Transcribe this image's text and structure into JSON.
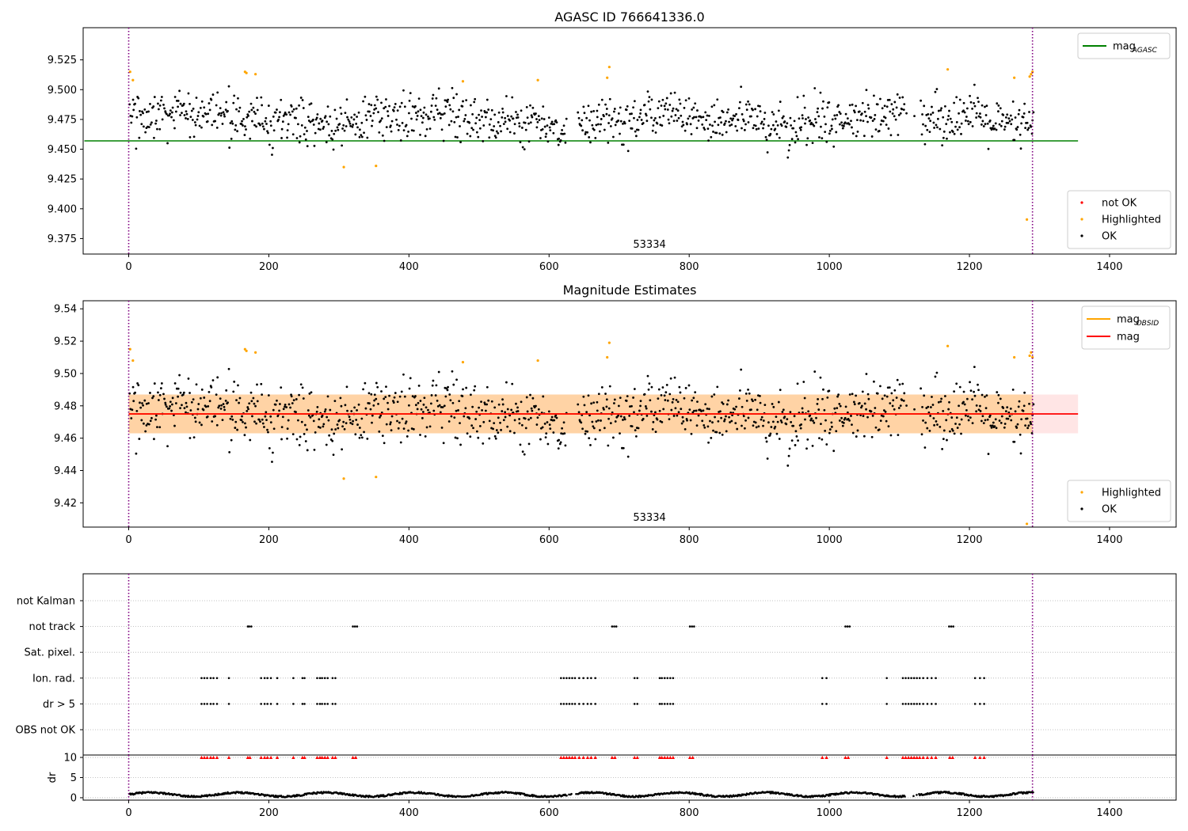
{
  "figure": {
    "title_top": "AGASC ID 766641336.0",
    "title_middle": "Magnitude Estimates"
  },
  "chart_data": [
    {
      "type": "scatter",
      "id": "agasc",
      "title": "AGASC ID 766641336.0",
      "xlim": [
        -65,
        1495
      ],
      "ylim": [
        9.362,
        9.552
      ],
      "xticks": [
        "0",
        "200",
        "400",
        "600",
        "800",
        "1000",
        "1200",
        "1400"
      ],
      "yticks": [
        "9.375",
        "9.400",
        "9.425",
        "9.450",
        "9.475",
        "9.500",
        "9.525"
      ],
      "vlines": [
        0,
        1290
      ],
      "annotation": {
        "text": "53334",
        "x": 645
      },
      "hline": {
        "name": "mag_AGASC",
        "y": 9.457,
        "x_range": [
          0,
          1355
        ],
        "color": "#008000"
      },
      "legend_line": [
        {
          "name": "mag",
          "sub": "AGASC",
          "color": "#008000"
        }
      ],
      "legend_points": [
        {
          "name": "not OK",
          "color": "#ff0000"
        },
        {
          "name": "Highlighted",
          "color": "#ffa500"
        },
        {
          "name": "OK",
          "color": "#000000"
        }
      ],
      "series": [
        {
          "name": "Highlighted",
          "color": "#ffa500",
          "points": [
            [
              2,
              9.515
            ],
            [
              6,
              9.508
            ],
            [
              166,
              9.515
            ],
            [
              168,
              9.514
            ],
            [
              181,
              9.513
            ],
            [
              307,
              9.435
            ],
            [
              353,
              9.436
            ],
            [
              477,
              9.507
            ],
            [
              584,
              9.508
            ],
            [
              683,
              9.51
            ],
            [
              686,
              9.519
            ],
            [
              1169,
              9.517
            ],
            [
              1264,
              9.51
            ],
            [
              1282,
              9.391
            ],
            [
              1286,
              9.511
            ],
            [
              1288,
              9.513
            ],
            [
              1290,
              9.515
            ]
          ]
        }
      ],
      "ok_cloud": {
        "n": 1150,
        "x_range": [
          1,
          1292
        ],
        "center": 9.475,
        "spread": 0.012,
        "gaps": [
          [
            625,
            640
          ],
          [
            1108,
            1130
          ]
        ]
      }
    },
    {
      "type": "scatter",
      "id": "estimates",
      "title": "Magnitude Estimates",
      "xlim": [
        -65,
        1495
      ],
      "ylim": [
        9.405,
        9.545
      ],
      "xticks": [
        "0",
        "200",
        "400",
        "600",
        "800",
        "1000",
        "1200",
        "1400"
      ],
      "yticks": [
        "9.42",
        "9.44",
        "9.46",
        "9.48",
        "9.50",
        "9.52",
        "9.54"
      ],
      "vlines": [
        0,
        1290
      ],
      "annotation": {
        "text": "53334",
        "x": 645
      },
      "bands": [
        {
          "name": "mag_OBSID",
          "y_range": [
            9.463,
            9.487
          ],
          "x_range": [
            0,
            1290
          ],
          "color": "#ffa500",
          "opacity": 0.28
        },
        {
          "name": "mag",
          "y_range": [
            9.463,
            9.487
          ],
          "x_range": [
            0,
            1355
          ],
          "color": "#ff0000",
          "opacity": 0.1
        }
      ],
      "lines": [
        {
          "name": "mag_OBSID",
          "y": 9.475,
          "x_range": [
            0,
            1290
          ],
          "color": "#ffa500"
        },
        {
          "name": "mag",
          "y": 9.475,
          "x_range": [
            0,
            1355
          ],
          "color": "#ff0000"
        }
      ],
      "legend_line": [
        {
          "name": "mag",
          "sub": "OBSID",
          "color": "#ffa500"
        },
        {
          "name": "mag",
          "sub": "",
          "color": "#ff0000"
        }
      ],
      "legend_points": [
        {
          "name": "Highlighted",
          "color": "#ffa500"
        },
        {
          "name": "OK",
          "color": "#000000"
        }
      ],
      "series": [
        {
          "name": "Highlighted",
          "color": "#ffa500",
          "points": [
            [
              2,
              9.515
            ],
            [
              6,
              9.508
            ],
            [
              166,
              9.515
            ],
            [
              168,
              9.514
            ],
            [
              181,
              9.513
            ],
            [
              307,
              9.435
            ],
            [
              353,
              9.436
            ],
            [
              477,
              9.507
            ],
            [
              584,
              9.508
            ],
            [
              683,
              9.51
            ],
            [
              686,
              9.519
            ],
            [
              1169,
              9.517
            ],
            [
              1264,
              9.51
            ],
            [
              1282,
              9.407
            ],
            [
              1286,
              9.511
            ],
            [
              1288,
              9.513
            ],
            [
              1290,
              9.51
            ]
          ]
        }
      ],
      "ok_cloud": {
        "n": 1150,
        "x_range": [
          1,
          1292
        ],
        "center": 9.475,
        "spread": 0.012,
        "gaps": [
          [
            625,
            640
          ],
          [
            1108,
            1130
          ]
        ]
      }
    },
    {
      "type": "scatter",
      "id": "flags",
      "xlim": [
        -65,
        1495
      ],
      "categories": [
        "not Kalman",
        "not track",
        "Sat. pixel.",
        "Ion. rad.",
        "dr > 5",
        "OBS not OK"
      ],
      "vlines": [
        0,
        1290
      ],
      "flag_series": [
        {
          "name": "not track",
          "x": [
            170,
            172,
            175,
            320,
            323,
            326,
            690,
            693,
            696,
            801,
            804,
            807,
            1023,
            1026,
            1029,
            1171,
            1174,
            1177
          ]
        },
        {
          "name": "Ion. rad.",
          "x": [
            104,
            108,
            112,
            117,
            121,
            126,
            143,
            189,
            194,
            198,
            203,
            212,
            235,
            248,
            251,
            269,
            273,
            276,
            280,
            284,
            291,
            295,
            617,
            621,
            625,
            629,
            633,
            637,
            643,
            649,
            655,
            660,
            666,
            722,
            726,
            758,
            761,
            765,
            769,
            773,
            777,
            990,
            996,
            1082,
            1105,
            1109,
            1113,
            1117,
            1121,
            1125,
            1129,
            1134,
            1140,
            1146,
            1152,
            1208,
            1215,
            1221
          ]
        },
        {
          "name": "dr > 5",
          "x": [
            104,
            108,
            112,
            117,
            121,
            126,
            143,
            189,
            194,
            198,
            203,
            212,
            235,
            248,
            251,
            269,
            273,
            276,
            280,
            284,
            291,
            295,
            617,
            621,
            625,
            629,
            633,
            637,
            643,
            649,
            655,
            660,
            666,
            722,
            726,
            758,
            761,
            765,
            769,
            773,
            777,
            990,
            996,
            1082,
            1105,
            1109,
            1113,
            1117,
            1121,
            1125,
            1129,
            1134,
            1140,
            1146,
            1152,
            1208,
            1215,
            1221
          ]
        }
      ]
    },
    {
      "type": "scatter",
      "id": "dr",
      "ylabel": "dr",
      "xlim": [
        -65,
        1495
      ],
      "ylim": [
        -0.6,
        10.6
      ],
      "xticks": [
        "0",
        "200",
        "400",
        "600",
        "800",
        "1000",
        "1200",
        "1400"
      ],
      "yticks": [
        "0",
        "5",
        "10"
      ],
      "vlines": [
        0,
        1290
      ],
      "clipped_red": {
        "y": 10,
        "color": "#ff0000",
        "x": [
          104,
          108,
          112,
          117,
          121,
          126,
          143,
          170,
          173,
          189,
          194,
          198,
          203,
          212,
          235,
          248,
          251,
          269,
          273,
          276,
          280,
          284,
          291,
          295,
          320,
          324,
          617,
          621,
          625,
          629,
          633,
          637,
          643,
          649,
          655,
          660,
          666,
          690,
          694,
          722,
          726,
          758,
          761,
          765,
          769,
          773,
          777,
          801,
          805,
          990,
          996,
          1023,
          1027,
          1082,
          1105,
          1109,
          1113,
          1117,
          1121,
          1125,
          1129,
          1134,
          1140,
          1146,
          1152,
          1172,
          1176,
          1208,
          1215,
          1221
        ]
      },
      "dr_cloud": {
        "n": 1150,
        "x_range": [
          1,
          1292
        ],
        "base": 0.8,
        "amp": 0.5,
        "gaps": [
          [
            625,
            640
          ],
          [
            1108,
            1130
          ]
        ]
      }
    }
  ]
}
